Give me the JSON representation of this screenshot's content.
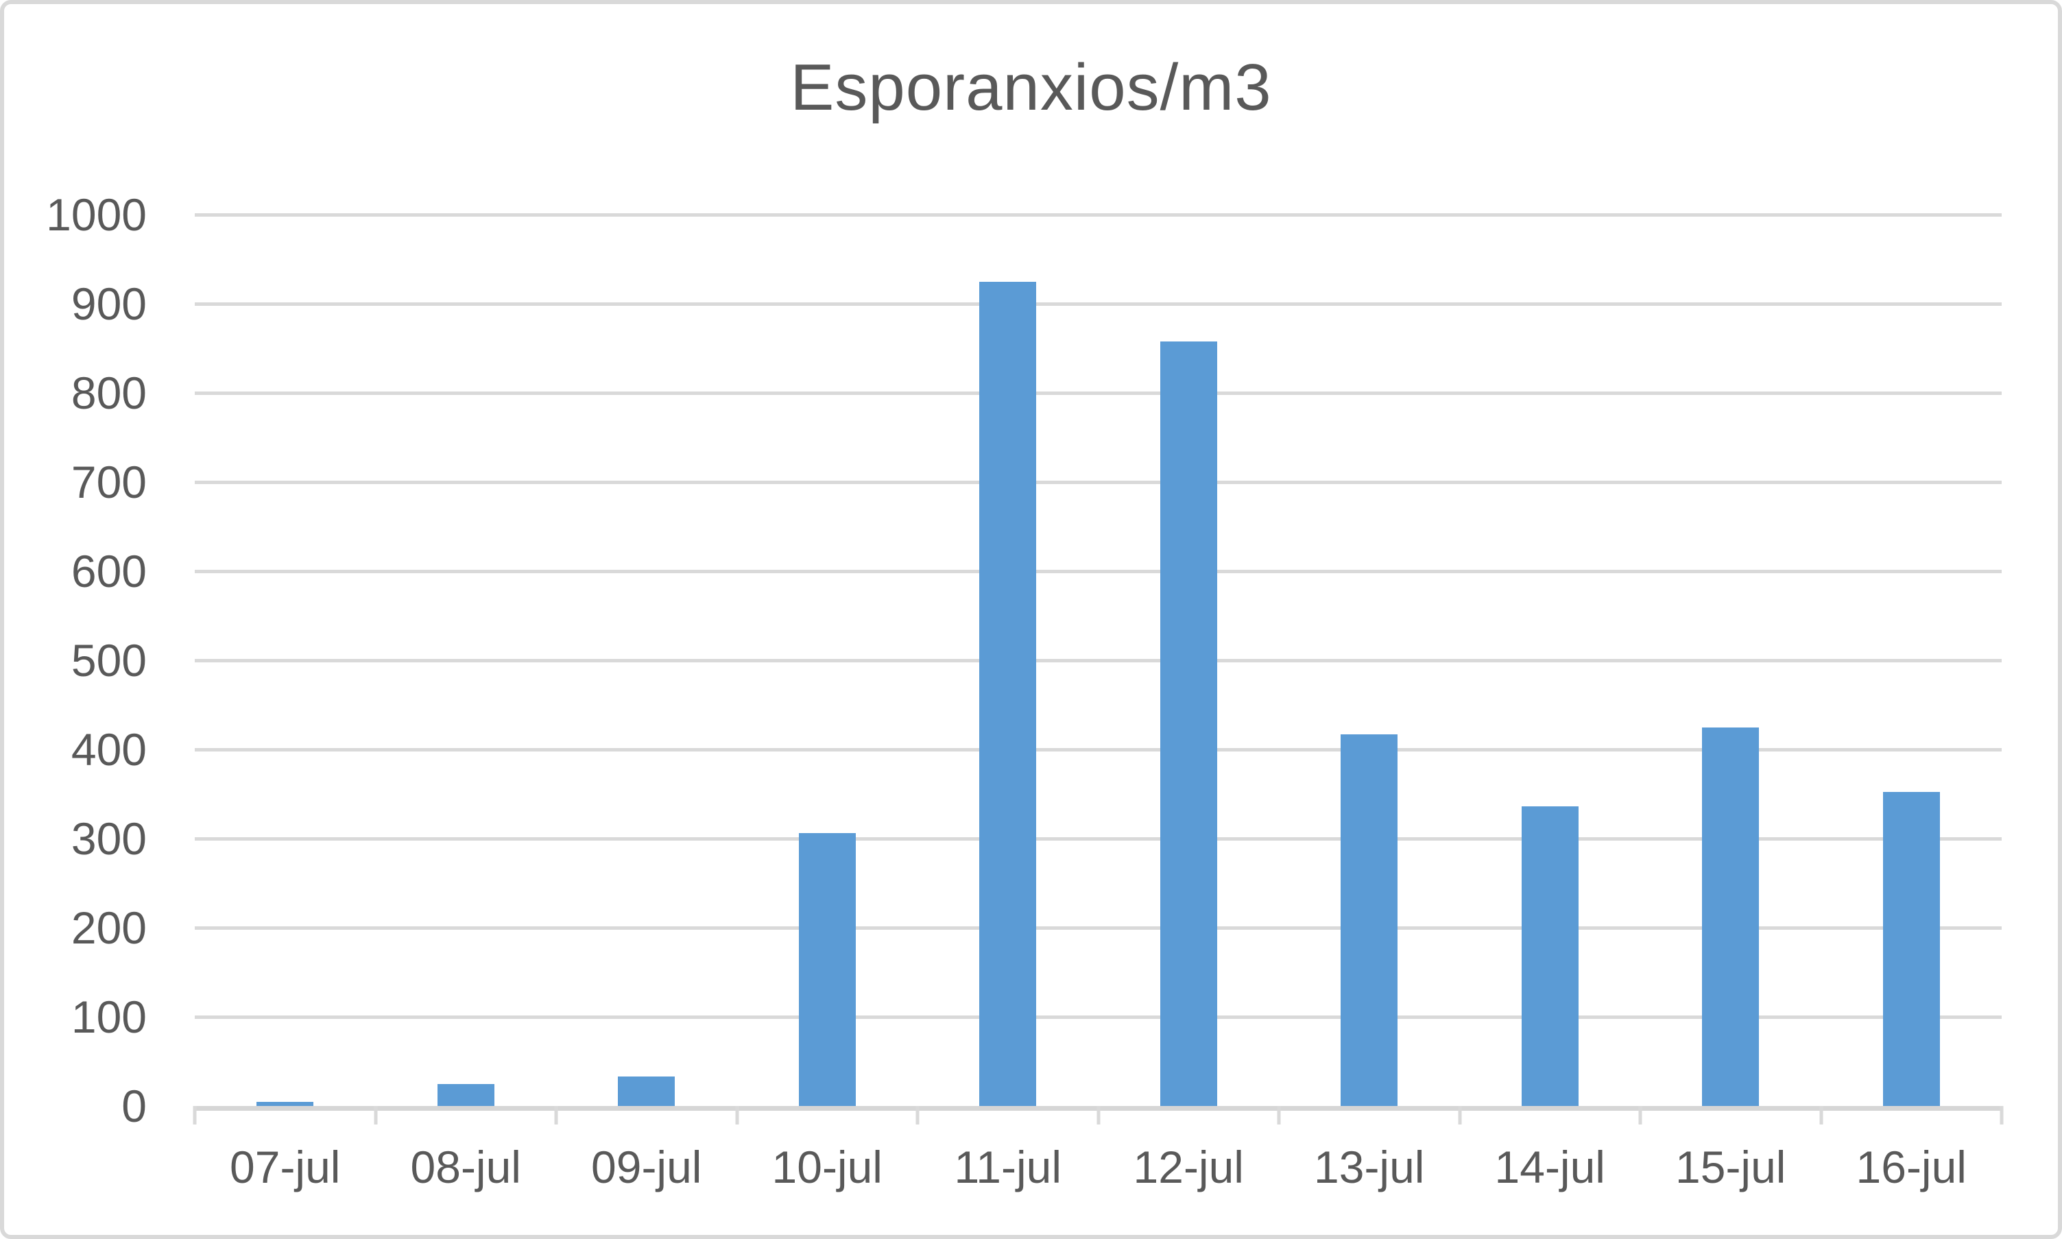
{
  "chart": {
    "colors": {
      "bar": "#5B9BD5",
      "gridline": "#D9D9D9",
      "axis_line": "#D6D6D6",
      "text": "#595959",
      "canvas_border": "#D9D9D9",
      "background": "#FFFFFF"
    }
  },
  "chart_data": {
    "type": "bar",
    "title": "Esporanxios/m3",
    "categories": [
      "07-jul",
      "08-jul",
      "09-jul",
      "10-jul",
      "11-jul",
      "12-jul",
      "13-jul",
      "14-jul",
      "15-jul",
      "16-jul"
    ],
    "values": [
      5,
      25,
      33,
      306,
      925,
      858,
      417,
      336,
      425,
      352
    ],
    "series": [
      {
        "name": "Esporanxios/m3",
        "values": [
          5,
          25,
          33,
          306,
          925,
          858,
          417,
          336,
          425,
          352
        ]
      }
    ],
    "xlabel": "",
    "ylabel": "",
    "ylim": [
      0,
      1000
    ],
    "yticks": [
      0,
      100,
      200,
      300,
      400,
      500,
      600,
      700,
      800,
      900,
      1000
    ],
    "grid": true,
    "legend_position": "none",
    "bar_color": "#5B9BD5"
  }
}
